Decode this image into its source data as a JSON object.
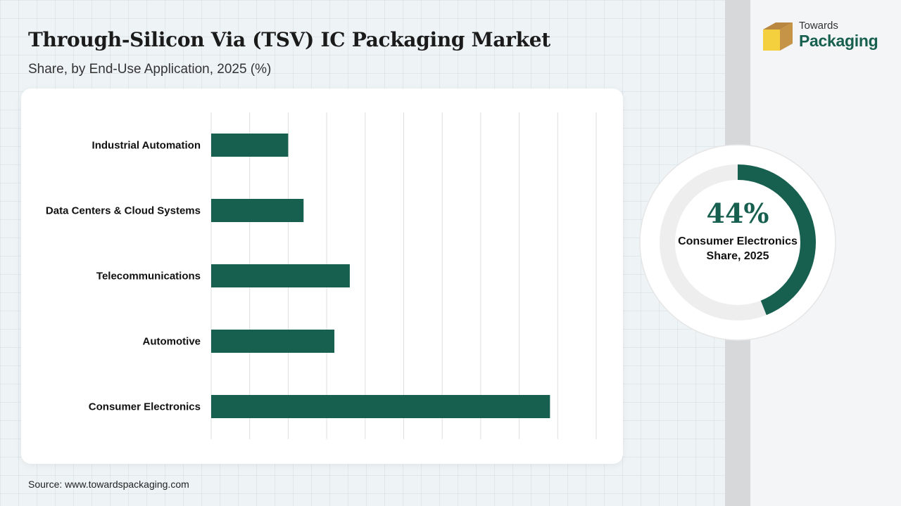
{
  "header": {
    "title": "Through-Silicon Via (TSV) IC Packaging Market",
    "subtitle": "Share, by End-Use Application, 2025 (%)"
  },
  "source": "Source: www.towardspackaging.com",
  "logo": {
    "line1": "Towards",
    "line2": "Packaging"
  },
  "highlight": {
    "value": "44%",
    "caption": "Consumer Electronics Share, 2025",
    "fraction": 0.44
  },
  "colors": {
    "bar": "#17604f",
    "accent": "#17604f",
    "donut_track": "#eeeeee"
  },
  "chart_data": {
    "type": "bar",
    "orientation": "horizontal",
    "categories": [
      "Industrial Automation",
      "Data Centers & Cloud Systems",
      "Telecommunications",
      "Automotive",
      "Consumer Electronics"
    ],
    "values": [
      10,
      12,
      18,
      16,
      44
    ],
    "xlim": [
      0,
      50
    ],
    "grid": true,
    "title": "Through-Silicon Via (TSV) IC Packaging Market",
    "subtitle": "Share, by End-Use Application, 2025 (%)"
  }
}
